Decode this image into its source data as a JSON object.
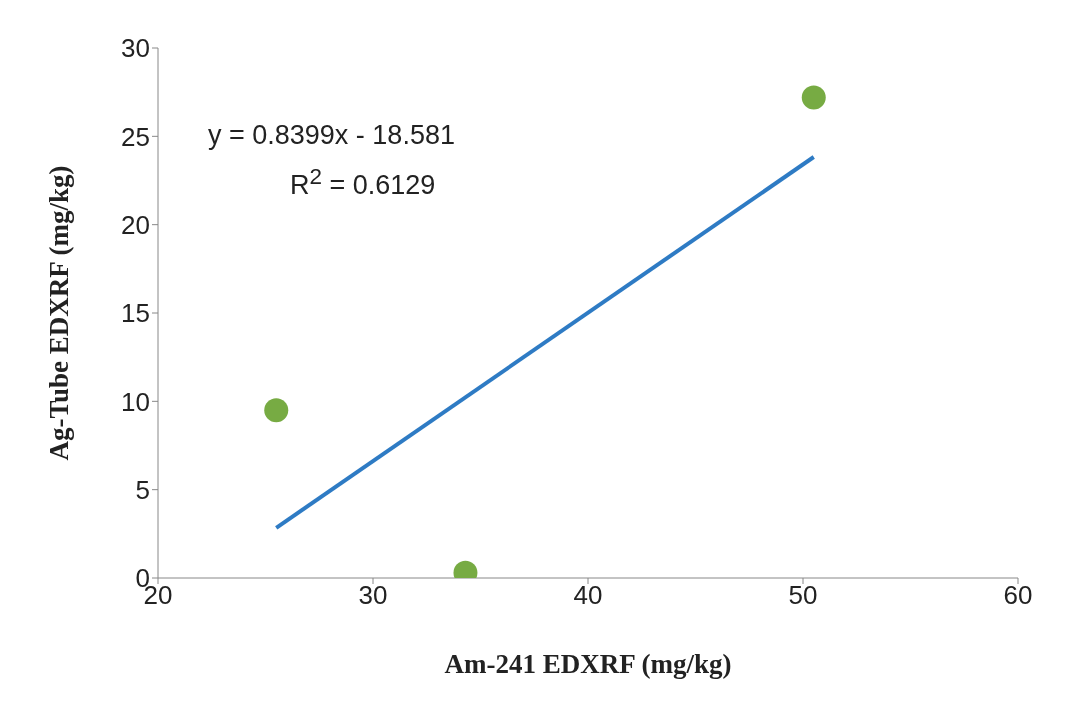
{
  "chart_data": {
    "type": "scatter",
    "xlabel": "Am-241 EDXRF (mg/kg)",
    "ylabel": "Ag-Tube EDXRF (mg/kg)",
    "annotations": [
      "y = 0.8399x - 18.581",
      "R$^{2}$ = 0.6129"
    ],
    "x": [
      25.5,
      34.3,
      50.5
    ],
    "series": [
      {
        "color": "#77ab43",
        "marker": "circle",
        "values": [
          9.5,
          0.3,
          27.2
        ]
      },
      {
        "type": "line",
        "color": "#2e7bc4",
        "marker": "none",
        "x": [
          25.5,
          50.5
        ],
        "values": [
          2.84,
          23.83
        ]
      }
    ],
    "xlim": [
      20,
      60
    ],
    "xticks": [
      20,
      30,
      40,
      50,
      60
    ],
    "ylim": [
      0,
      30
    ],
    "yticks": [
      0,
      5,
      10,
      15,
      20,
      25,
      30
    ],
    "grid": false,
    "line_style": "solid"
  }
}
